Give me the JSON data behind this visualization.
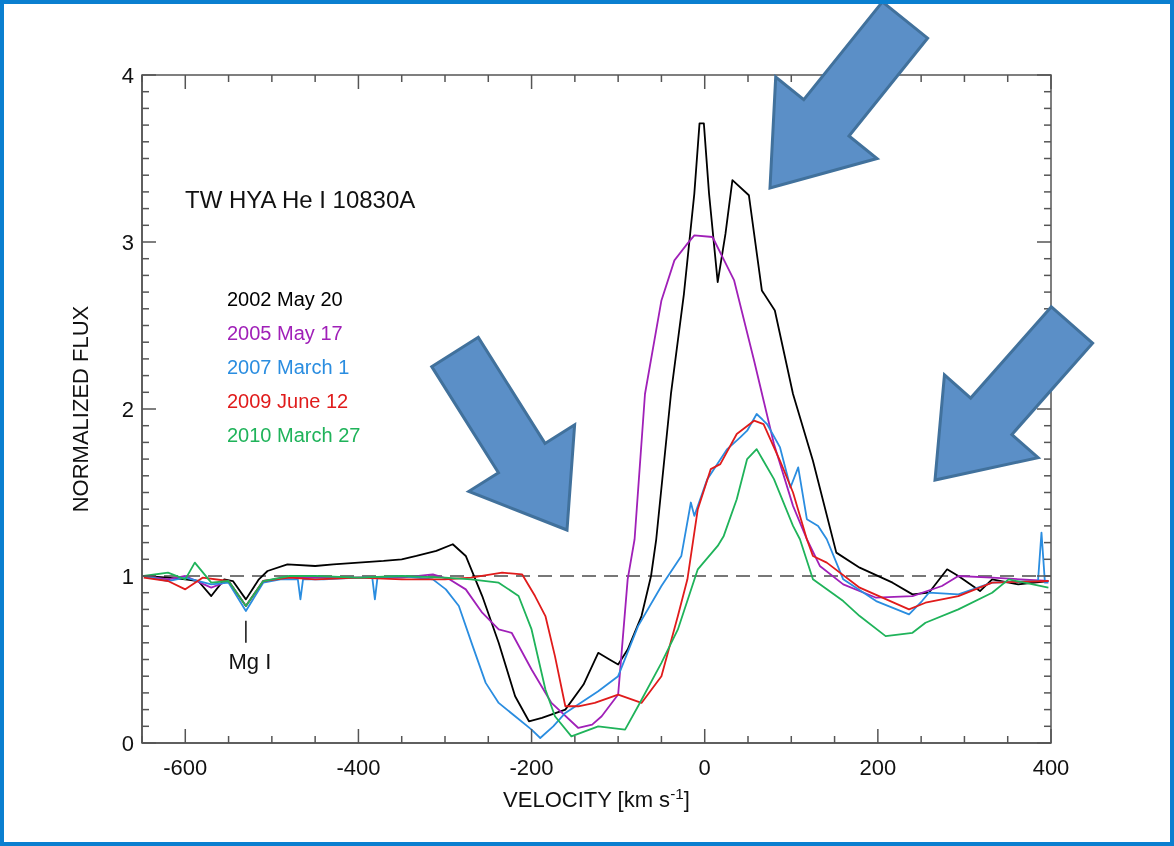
{
  "chart_data": {
    "type": "line",
    "title": "TW HYA He I 10830A",
    "xlabel": "VELOCITY [km s$^{-1}$]",
    "ylabel": "NORMALIZED FLUX",
    "annotations": [
      {
        "text": "Mg I",
        "x": -530,
        "y": 0.78
      }
    ],
    "xlim": [
      -650,
      400
    ],
    "ylim": [
      0,
      4
    ],
    "xticks": [
      {
        "value": -650,
        "label": null
      },
      -600,
      {
        "value": -550,
        "label": null
      },
      {
        "value": -500,
        "label": null
      },
      {
        "value": -450,
        "label": null
      },
      -400,
      {
        "value": -350,
        "label": null
      },
      {
        "value": -300,
        "label": null
      },
      {
        "value": -250,
        "label": null
      },
      -200,
      {
        "value": -150,
        "label": null
      },
      {
        "value": -100,
        "label": null
      },
      {
        "value": -50,
        "label": null
      },
      0,
      {
        "value": 50,
        "label": null
      },
      {
        "value": 100,
        "label": null
      },
      {
        "value": 150,
        "label": null
      },
      200,
      {
        "value": 250,
        "label": null
      },
      {
        "value": 300,
        "label": null
      },
      {
        "value": 350,
        "label": null
      },
      400
    ],
    "yticks": [
      0,
      {
        "value": 0.1,
        "label": null
      },
      {
        "value": 0.2,
        "label": null
      },
      {
        "value": 0.3,
        "label": null
      },
      {
        "value": 0.4,
        "label": null
      },
      {
        "value": 0.5,
        "label": null
      },
      {
        "value": 0.6,
        "label": null
      },
      {
        "value": 0.7,
        "label": null
      },
      {
        "value": 0.8,
        "label": null
      },
      {
        "value": 0.9,
        "label": null
      },
      1,
      {
        "value": 1.1,
        "label": null
      },
      {
        "value": 1.2,
        "label": null
      },
      {
        "value": 1.3,
        "label": null
      },
      {
        "value": 1.4,
        "label": null
      },
      {
        "value": 1.5,
        "label": null
      },
      {
        "value": 1.6,
        "label": null
      },
      {
        "value": 1.7,
        "label": null
      },
      {
        "value": 1.8,
        "label": null
      },
      {
        "value": 1.9,
        "label": null
      },
      2,
      {
        "value": 2.1,
        "label": null
      },
      {
        "value": 2.2,
        "label": null
      },
      {
        "value": 2.3,
        "label": null
      },
      {
        "value": 2.4,
        "label": null
      },
      {
        "value": 2.5,
        "label": null
      },
      {
        "value": 2.6,
        "label": null
      },
      {
        "value": 2.7,
        "label": null
      },
      {
        "value": 2.8,
        "label": null
      },
      {
        "value": 2.9,
        "label": null
      },
      3,
      {
        "value": 3.1,
        "label": null
      },
      {
        "value": 3.2,
        "label": null
      },
      {
        "value": 3.3,
        "label": null
      },
      {
        "value": 3.4,
        "label": null
      },
      {
        "value": 3.5,
        "label": null
      },
      {
        "value": 3.6,
        "label": null
      },
      {
        "value": 3.7,
        "label": null
      },
      {
        "value": 3.8,
        "label": null
      },
      {
        "value": 3.9,
        "label": null
      },
      4
    ],
    "legend": "top left",
    "line_style": "solid",
    "ref_lines": [
      {
        "axis": "y",
        "value": 1,
        "label": null,
        "color": "#777777",
        "line_style": "dashed"
      }
    ],
    "series": [
      {
        "name": "2002 May 20",
        "color": "#000000",
        "x": [
          -648,
          -620,
          -600,
          -585,
          -570,
          -555,
          -545,
          -530,
          -515,
          -505,
          -482,
          -450,
          -429,
          -400,
          -371,
          -350,
          -333,
          -310,
          -291,
          -276,
          -257,
          -238,
          -219,
          -203,
          -188,
          -161,
          -140,
          -123,
          -110,
          -100,
          -89,
          -73,
          -62,
          -56,
          -39,
          -24,
          -12,
          -6,
          -1,
          5,
          15,
          24,
          32,
          51,
          66,
          81,
          102,
          125,
          152,
          179,
          217,
          240,
          259,
          280,
          293,
          318,
          332,
          362,
          397
        ],
        "values": [
          1.0,
          0.99,
          0.98,
          0.97,
          0.88,
          0.98,
          0.97,
          0.86,
          0.98,
          1.03,
          1.07,
          1.06,
          1.07,
          1.08,
          1.09,
          1.1,
          1.12,
          1.15,
          1.19,
          1.12,
          0.88,
          0.6,
          0.28,
          0.13,
          0.15,
          0.2,
          0.35,
          0.54,
          0.5,
          0.47,
          0.56,
          0.76,
          1.0,
          1.22,
          2.09,
          2.69,
          3.29,
          3.71,
          3.71,
          3.29,
          2.76,
          3.05,
          3.37,
          3.28,
          2.71,
          2.59,
          2.09,
          1.69,
          1.14,
          1.05,
          0.96,
          0.89,
          0.9,
          1.04,
          1.0,
          0.91,
          0.98,
          0.95,
          0.97
        ]
      },
      {
        "name": "2005 May 17",
        "color": "#a020b8",
        "x": [
          -648,
          -620,
          -600,
          -570,
          -550,
          -530,
          -510,
          -480,
          -450,
          -400,
          -350,
          -314,
          -295,
          -276,
          -257,
          -238,
          -223,
          -200,
          -177,
          -146,
          -130,
          -119,
          -100,
          -89,
          -81,
          -69,
          -50,
          -35,
          -20,
          -12,
          9,
          34,
          57,
          80,
          102,
          118,
          133,
          160,
          198,
          240,
          274,
          293,
          332,
          397
        ],
        "values": [
          1.0,
          0.98,
          1.0,
          0.93,
          0.97,
          0.82,
          0.97,
          0.99,
          0.99,
          0.99,
          0.99,
          1.01,
          0.98,
          0.92,
          0.78,
          0.68,
          0.66,
          0.44,
          0.24,
          0.09,
          0.11,
          0.16,
          0.29,
          0.98,
          1.22,
          2.09,
          2.65,
          2.89,
          2.99,
          3.04,
          3.03,
          2.77,
          2.29,
          1.79,
          1.42,
          1.22,
          1.06,
          0.95,
          0.87,
          0.88,
          0.94,
          1.0,
          0.99,
          0.97
        ]
      },
      {
        "name": "2007 March 1",
        "color": "#2a8de0",
        "x": [
          -648,
          -620,
          -600,
          -570,
          -550,
          -530,
          -510,
          -490,
          -470,
          -467,
          -464,
          -440,
          -400,
          -384,
          -381,
          -378,
          -350,
          -314,
          -299,
          -284,
          -268,
          -253,
          -238,
          -219,
          -200,
          -190,
          -175,
          -161,
          -123,
          -100,
          -77,
          -50,
          -27,
          -16,
          -12,
          3,
          26,
          41,
          49,
          60,
          72,
          87,
          99,
          108,
          118,
          131,
          141,
          160,
          198,
          236,
          251,
          259,
          293,
          332,
          385,
          389,
          393,
          397
        ],
        "values": [
          1.0,
          0.97,
          0.99,
          0.95,
          0.96,
          0.79,
          0.96,
          0.98,
          0.98,
          0.86,
          0.98,
          0.98,
          0.99,
          0.99,
          0.86,
          0.99,
          1.0,
          0.98,
          0.92,
          0.82,
          0.58,
          0.36,
          0.24,
          0.16,
          0.08,
          0.03,
          0.1,
          0.18,
          0.31,
          0.4,
          0.7,
          0.94,
          1.12,
          1.44,
          1.36,
          1.58,
          1.76,
          1.83,
          1.87,
          1.97,
          1.91,
          1.77,
          1.53,
          1.65,
          1.34,
          1.3,
          1.22,
          0.98,
          0.85,
          0.77,
          0.85,
          0.9,
          0.89,
          0.96,
          0.97,
          1.26,
          0.96,
          0.96
        ]
      },
      {
        "name": "2009 June 12",
        "color": "#e01b1b",
        "x": [
          -648,
          -620,
          -600,
          -580,
          -550,
          -530,
          -510,
          -480,
          -450,
          -400,
          -350,
          -300,
          -270,
          -234,
          -211,
          -196,
          -184,
          -173,
          -161,
          -146,
          -127,
          -100,
          -73,
          -50,
          -31,
          -20,
          -8,
          7,
          18,
          37,
          57,
          68,
          87,
          102,
          118,
          125,
          141,
          179,
          236,
          255,
          293,
          332,
          397
        ],
        "values": [
          0.99,
          0.97,
          0.92,
          0.99,
          0.97,
          0.82,
          0.97,
          0.99,
          0.98,
          0.99,
          0.98,
          0.98,
          0.99,
          1.02,
          1.01,
          0.88,
          0.76,
          0.52,
          0.22,
          0.22,
          0.24,
          0.29,
          0.24,
          0.4,
          0.76,
          0.98,
          1.4,
          1.64,
          1.67,
          1.85,
          1.93,
          1.91,
          1.69,
          1.5,
          1.22,
          1.12,
          1.08,
          0.93,
          0.8,
          0.84,
          0.88,
          0.96,
          0.97
        ]
      },
      {
        "name": "2010 March 27",
        "color": "#1fb35a",
        "x": [
          -648,
          -620,
          -600,
          -589,
          -570,
          -550,
          -530,
          -510,
          -480,
          -450,
          -400,
          -350,
          -300,
          -270,
          -238,
          -215,
          -200,
          -184,
          -173,
          -154,
          -123,
          -92,
          -77,
          -50,
          -31,
          -8,
          15,
          22,
          37,
          49,
          60,
          80,
          102,
          110,
          125,
          160,
          179,
          209,
          240,
          255,
          293,
          332,
          351,
          397
        ],
        "values": [
          1.0,
          1.02,
          0.98,
          1.08,
          0.96,
          0.97,
          0.82,
          0.97,
          1.0,
          1.0,
          0.99,
          1.0,
          0.99,
          0.98,
          0.96,
          0.88,
          0.68,
          0.32,
          0.16,
          0.04,
          0.1,
          0.08,
          0.22,
          0.48,
          0.68,
          1.04,
          1.18,
          1.24,
          1.46,
          1.7,
          1.76,
          1.58,
          1.3,
          1.22,
          0.98,
          0.85,
          0.76,
          0.64,
          0.66,
          0.72,
          0.8,
          0.9,
          0.98,
          0.93
        ]
      }
    ]
  }
}
